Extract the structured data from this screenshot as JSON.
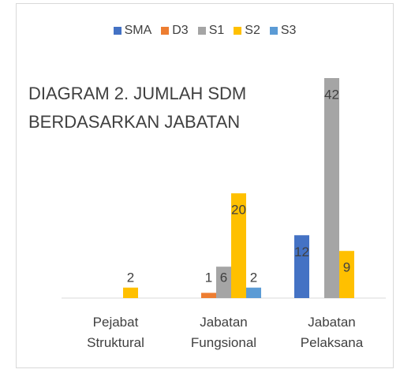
{
  "chart_data": {
    "type": "bar",
    "title": [
      "DIAGRAM 2. JUMLAH SDM",
      "BERDASARKAN JABATAN"
    ],
    "categories": [
      "Pejabat Struktural",
      "Jabatan Fungsional",
      "Jabatan Pelaksana"
    ],
    "series": [
      {
        "name": "SMA",
        "color": "#4472c4",
        "values": [
          null,
          null,
          12
        ]
      },
      {
        "name": "D3",
        "color": "#ed7d31",
        "values": [
          null,
          1,
          null
        ]
      },
      {
        "name": "S1",
        "color": "#a5a5a5",
        "values": [
          null,
          6,
          42
        ]
      },
      {
        "name": "S2",
        "color": "#ffc000",
        "values": [
          2,
          20,
          9
        ]
      },
      {
        "name": "S3",
        "color": "#5b9bd5",
        "values": [
          null,
          2,
          null
        ]
      }
    ],
    "ylim": [
      0,
      42
    ],
    "legend": "top",
    "grid": false
  }
}
